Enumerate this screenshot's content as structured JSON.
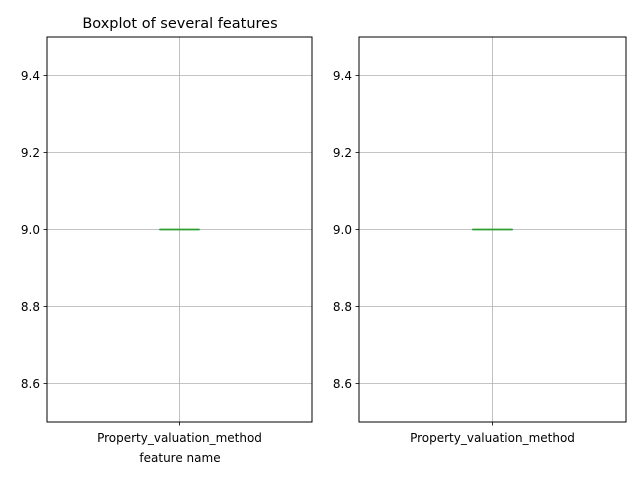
{
  "chart_data": [
    {
      "type": "boxplot",
      "title": "Boxplot of several features",
      "xlabel": "feature name",
      "ylabel": "",
      "categories": [
        "Property_valuation_method"
      ],
      "boxes": [
        {
          "category": "Property_valuation_method",
          "whislo": 9.0,
          "q1": 9.0,
          "med": 9.0,
          "q3": 9.0,
          "whishi": 9.0
        }
      ],
      "ylim": [
        8.5,
        9.5
      ],
      "yticks": [
        "8.6",
        "8.8",
        "9.0",
        "9.2",
        "9.4"
      ],
      "grid": true,
      "colors": {
        "box": "#1f77b4",
        "median": "#2ca02c"
      }
    },
    {
      "type": "boxplot",
      "title": "",
      "xlabel": "",
      "ylabel": "",
      "categories": [
        "Property_valuation_method"
      ],
      "boxes": [
        {
          "category": "Property_valuation_method",
          "whislo": 9.0,
          "q1": 9.0,
          "med": 9.0,
          "q3": 9.0,
          "whishi": 9.0
        }
      ],
      "ylim": [
        8.5,
        9.5
      ],
      "yticks": [
        "8.6",
        "8.8",
        "9.0",
        "9.2",
        "9.4"
      ],
      "grid": true,
      "colors": {
        "box": "#1f77b4",
        "median": "#2ca02c"
      }
    }
  ]
}
